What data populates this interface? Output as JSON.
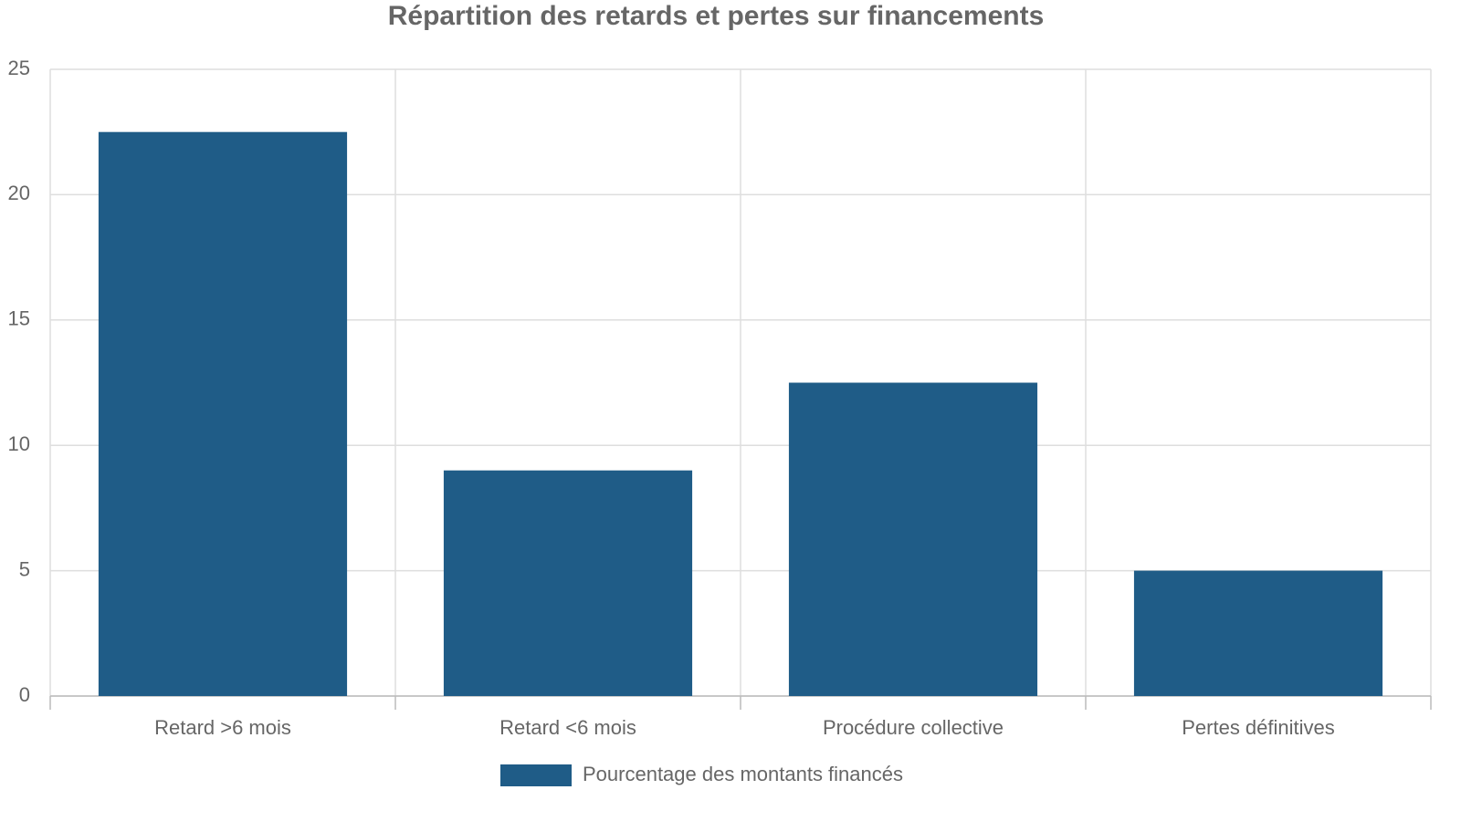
{
  "chart_data": {
    "type": "bar",
    "title": "Répartition des retards et pertes sur financements",
    "categories": [
      "Retard >6 mois",
      "Retard <6 mois",
      "Procédure collective",
      "Pertes définitives"
    ],
    "series": [
      {
        "name": "Pourcentage des montants financés",
        "color": "#1f5c87",
        "values": [
          22.5,
          9,
          12.5,
          5
        ]
      }
    ],
    "ylim": [
      0,
      25
    ],
    "yticks": [
      0,
      5,
      10,
      15,
      20,
      25
    ],
    "grid": true
  }
}
